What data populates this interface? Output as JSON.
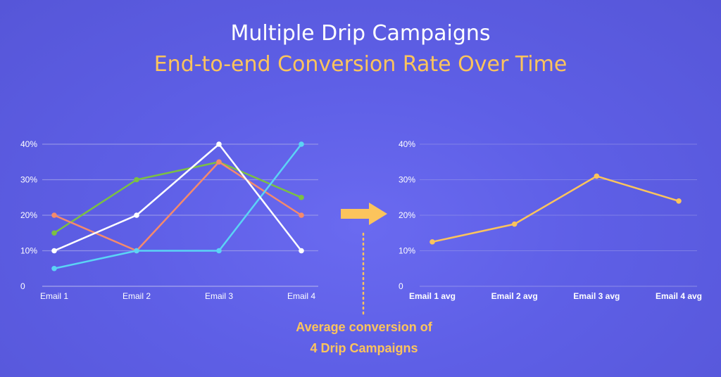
{
  "header": {
    "title": "Multiple Drip Campaigns",
    "subtitle": "End-to-end Conversion Rate Over Time"
  },
  "colors": {
    "accent": "#fcc45c",
    "grid": "#9a9ae8",
    "text": "#ffffff"
  },
  "caption": {
    "line1": "Average conversion of",
    "line2": "4 Drip Campaigns"
  },
  "icons": {
    "arrow": "right-arrow-icon"
  },
  "chart_data": [
    {
      "type": "line",
      "categories": [
        "Email 1",
        "Email 2",
        "Email 3",
        "Email 4"
      ],
      "y_ticks": [
        "0",
        "10%",
        "20%",
        "30%",
        "40%"
      ],
      "ylim": [
        0,
        40
      ],
      "grid": true,
      "series": [
        {
          "color": "#7bc043",
          "values": [
            15,
            30,
            35,
            25
          ]
        },
        {
          "color": "#f58a6b",
          "values": [
            20,
            10,
            35,
            20
          ]
        },
        {
          "color": "#5bd4f5",
          "values": [
            5,
            10,
            10,
            40
          ]
        },
        {
          "color": "#ffffff",
          "values": [
            10,
            20,
            40,
            10
          ]
        }
      ]
    },
    {
      "type": "line",
      "categories": [
        "Email 1 avg",
        "Email 2 avg",
        "Email 3 avg",
        "Email 4 avg"
      ],
      "y_ticks": [
        "0",
        "10%",
        "20%",
        "30%",
        "40%"
      ],
      "ylim": [
        0,
        40
      ],
      "grid": true,
      "series": [
        {
          "color": "#fcc45c",
          "values": [
            12.5,
            17.5,
            31,
            24
          ]
        }
      ]
    }
  ]
}
